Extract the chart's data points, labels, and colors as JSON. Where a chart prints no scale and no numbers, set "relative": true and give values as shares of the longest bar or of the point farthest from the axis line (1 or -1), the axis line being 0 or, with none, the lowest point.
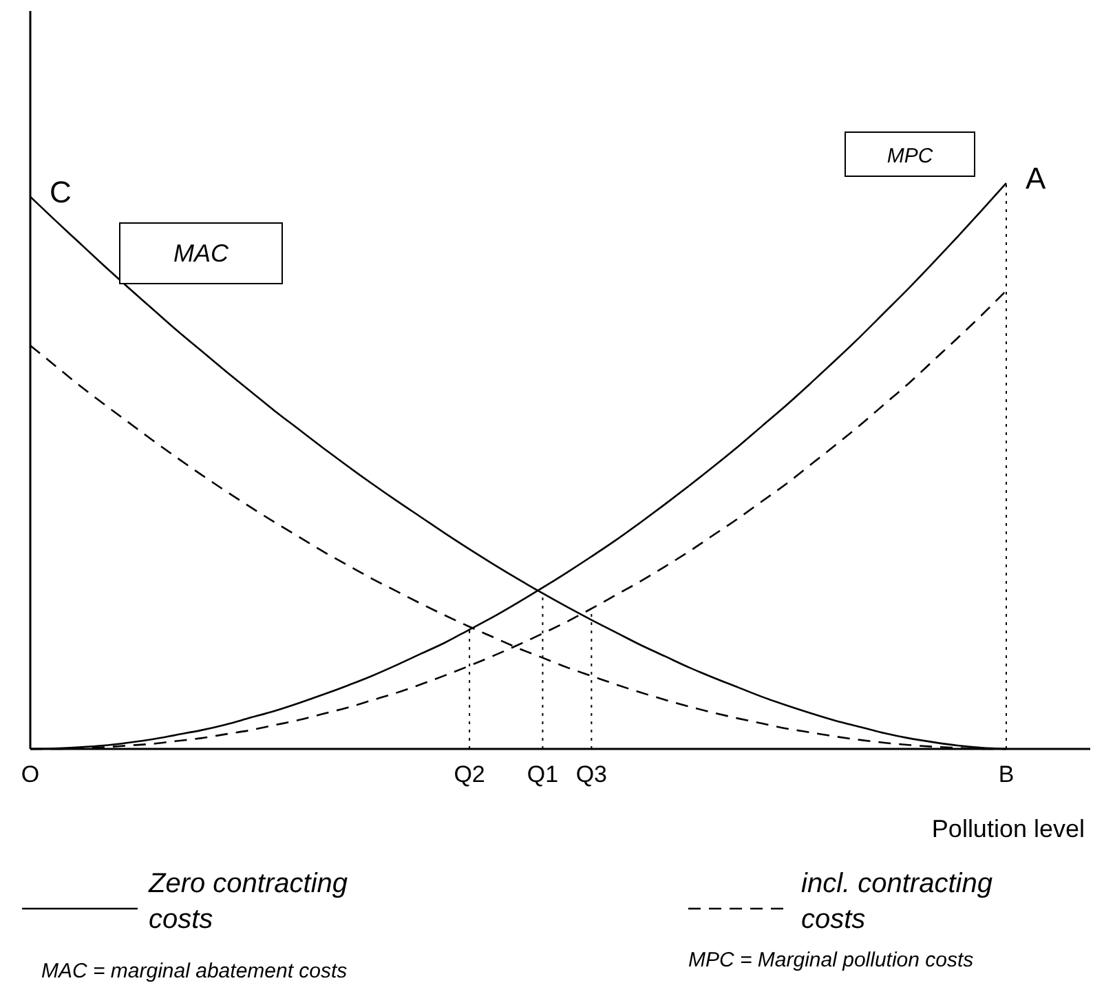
{
  "chart_data": {
    "type": "line",
    "relative": true,
    "xlabel": "Pollution level",
    "legend": "bottom",
    "categories": [
      "O",
      null,
      null,
      null,
      null,
      null,
      null,
      null,
      null,
      null,
      null,
      null,
      null,
      null,
      null,
      null,
      null,
      null,
      "Q2",
      null,
      null,
      "Q1",
      null,
      "Q3",
      null,
      null,
      null,
      null,
      null,
      null,
      null,
      null,
      null,
      null,
      null,
      null,
      null,
      null,
      null,
      null,
      "B"
    ],
    "series": [
      {
        "name": "Zero contracting costs",
        "color": "#000000",
        "line_style": "solid",
        "values": [
          0.976,
          0.935,
          0.895,
          0.855,
          0.816,
          0.778,
          0.74,
          0.704,
          0.668,
          0.633,
          0.598,
          0.565,
          0.532,
          0.5,
          0.469,
          0.439,
          0.41,
          0.381,
          0.353,
          0.326,
          0.3,
          0.275,
          0.251,
          0.228,
          0.206,
          0.184,
          0.164,
          0.144,
          0.126,
          0.109,
          0.092,
          0.077,
          0.063,
          0.05,
          0.039,
          0.028,
          0.019,
          0.012,
          0.006,
          0.002,
          0
        ]
      },
      {
        "name": "incl. contracting costs",
        "color": "#000000",
        "line_style": "dashed",
        "values": [
          0.713,
          0.678,
          0.643,
          0.61,
          0.578,
          0.546,
          0.515,
          0.485,
          0.456,
          0.428,
          0.401,
          0.375,
          0.349,
          0.325,
          0.301,
          0.279,
          0.257,
          0.236,
          0.216,
          0.197,
          0.178,
          0.161,
          0.144,
          0.129,
          0.114,
          0.1,
          0.087,
          0.075,
          0.064,
          0.054,
          0.045,
          0.036,
          0.029,
          0.022,
          0.016,
          0.011,
          0.007,
          0.004,
          0.002,
          0.0,
          0
        ]
      },
      {
        "color": "#000000",
        "line_style": "solid",
        "values": [
          0,
          0.001,
          0.003,
          0.006,
          0.011,
          0.017,
          0.025,
          0.033,
          0.043,
          0.055,
          0.067,
          0.081,
          0.096,
          0.112,
          0.129,
          0.148,
          0.168,
          0.188,
          0.211,
          0.234,
          0.259,
          0.285,
          0.312,
          0.34,
          0.369,
          0.4,
          0.432,
          0.465,
          0.499,
          0.534,
          0.571,
          0.608,
          0.647,
          0.687,
          0.728,
          0.771,
          0.814,
          0.859,
          0.905,
          0.952,
          1
        ]
      },
      {
        "color": "#000000",
        "line_style": "dashed",
        "values": [
          0,
          0.0,
          0.001,
          0.003,
          0.006,
          0.009,
          0.014,
          0.019,
          0.026,
          0.033,
          0.042,
          0.051,
          0.062,
          0.073,
          0.086,
          0.099,
          0.114,
          0.13,
          0.147,
          0.165,
          0.184,
          0.204,
          0.225,
          0.248,
          0.272,
          0.296,
          0.322,
          0.349,
          0.378,
          0.407,
          0.438,
          0.469,
          0.503,
          0.537,
          0.572,
          0.609,
          0.646,
          0.686,
          0.726,
          0.767,
          0.81
        ]
      }
    ],
    "ref_lines": [
      {
        "axis": "x",
        "value": "Q2",
        "line_style": "dotted"
      },
      {
        "axis": "x",
        "value": "Q1",
        "line_style": "dotted"
      },
      {
        "axis": "x",
        "value": "Q3",
        "line_style": "dotted"
      },
      {
        "axis": "x",
        "value": "B",
        "line_style": "dotted"
      }
    ],
    "annotations": [
      {
        "text": "C",
        "x": "O",
        "y": 0.976
      },
      {
        "text": "A",
        "x": "B",
        "y": 1
      },
      "MAC",
      "MPC",
      "MAC = marginal abatement costs",
      "MPC = Marginal pollution costs"
    ]
  }
}
